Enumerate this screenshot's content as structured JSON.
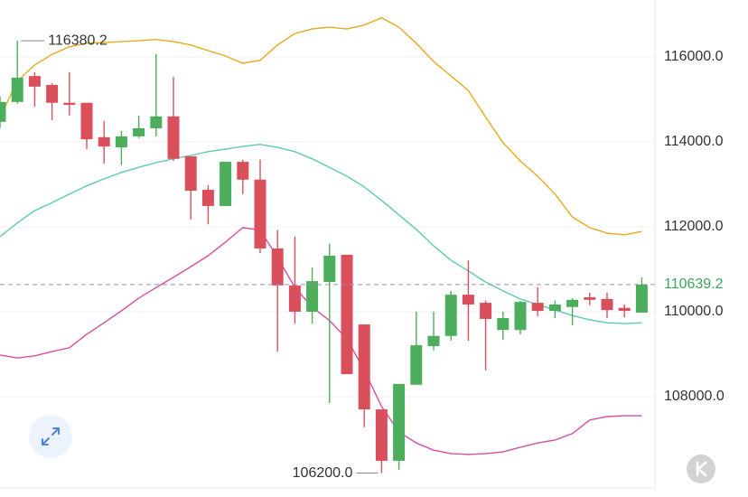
{
  "chart_data": {
    "type": "candlestick",
    "ylim": [
      105850,
      117340
    ],
    "yticks": [
      {
        "value": 108000,
        "label": "108000.0"
      },
      {
        "value": 110000,
        "label": "110000.0"
      },
      {
        "value": 112000,
        "label": "112000.0"
      },
      {
        "value": 114000,
        "label": "114000.0"
      },
      {
        "value": 116000,
        "label": "116000.0"
      }
    ],
    "grid": true,
    "up_color": "#4cae5c",
    "down_color": "#d9505c",
    "open": [
      114470,
      114940,
      115550,
      115340,
      114920,
      114920,
      114110,
      113870,
      114130,
      114320,
      114600,
      113660,
      112870,
      112490,
      113530,
      113110,
      111490,
      110620,
      110000,
      110700,
      111340,
      109700,
      107700,
      106490,
      108280,
      109190,
      109430,
      110400,
      110210,
      109570,
      109570,
      110210,
      110020,
      110110,
      110340,
      110300,
      110090,
      109980
    ],
    "high": [
      115070,
      116380.2,
      115640,
      115380,
      115640,
      114920,
      114490,
      114260,
      114620,
      116070,
      115530,
      113660,
      112980,
      113530,
      113580,
      113580,
      111920,
      111770,
      111040,
      111600,
      111340,
      109700,
      107700,
      108300,
      110000,
      110000,
      110490,
      111210,
      110260,
      110000,
      110260,
      110580,
      110260,
      110320,
      110450,
      110450,
      110170,
      110810
    ],
    "low": [
      114320,
      114900,
      114830,
      114510,
      114620,
      113830,
      113490,
      113450,
      114090,
      114130,
      113550,
      112170,
      112060,
      112490,
      112770,
      111380,
      109060,
      109720,
      109720,
      107850,
      108530,
      107280,
      106200,
      106280,
      108280,
      109090,
      109320,
      109320,
      108620,
      109340,
      109470,
      109890,
      109850,
      109680,
      110150,
      109850,
      109870,
      109980
    ],
    "close": [
      114940,
      115510,
      115300,
      114920,
      114870,
      114060,
      113890,
      114130,
      114320,
      114600,
      113600,
      112850,
      112490,
      113530,
      113110,
      111490,
      110620,
      110000,
      110720,
      111320,
      108530,
      107700,
      106490,
      108300,
      109210,
      109430,
      110400,
      110170,
      109830,
      109850,
      110230,
      110020,
      110170,
      110280,
      110280,
      110040,
      110020,
      110639.2
    ],
    "lines": [
      {
        "color": "#e6aa1e",
        "values": [
          114580,
          115430,
          115810,
          116060,
          116240,
          116320,
          116340,
          116360,
          116380,
          116410,
          116360,
          116280,
          116150,
          116020,
          115850,
          115920,
          116280,
          116550,
          116660,
          116700,
          116660,
          116750,
          116920,
          116700,
          116320,
          115890,
          115550,
          115210,
          114580,
          113980,
          113550,
          113190,
          112770,
          112230,
          111980,
          111850,
          111810,
          111890
        ]
      },
      {
        "color": "#5ccab2",
        "values": [
          111770,
          112090,
          112380,
          112570,
          112770,
          112960,
          113130,
          113280,
          113400,
          113510,
          113600,
          113680,
          113770,
          113830,
          113890,
          113940,
          113870,
          113770,
          113600,
          113400,
          113190,
          112940,
          112620,
          112280,
          111940,
          111550,
          111210,
          110960,
          110700,
          110490,
          110300,
          110170,
          110040,
          109910,
          109810,
          109740,
          109720,
          109740
        ]
      },
      {
        "color": "#d34fa3",
        "values": [
          108980,
          108910,
          108960,
          109060,
          109150,
          109470,
          109740,
          110020,
          110320,
          110570,
          110810,
          111060,
          111320,
          111640,
          111980,
          111920,
          111280,
          110570,
          110110,
          109790,
          109360,
          108620,
          107770,
          107170,
          106910,
          106740,
          106660,
          106640,
          106660,
          106700,
          106810,
          106910,
          106980,
          107130,
          107450,
          107530,
          107550,
          107550
        ]
      }
    ],
    "high_label": "116380.2",
    "low_label": "106200.0",
    "last_price_label": "110639.2",
    "last_price_color": "#3aa75a"
  }
}
